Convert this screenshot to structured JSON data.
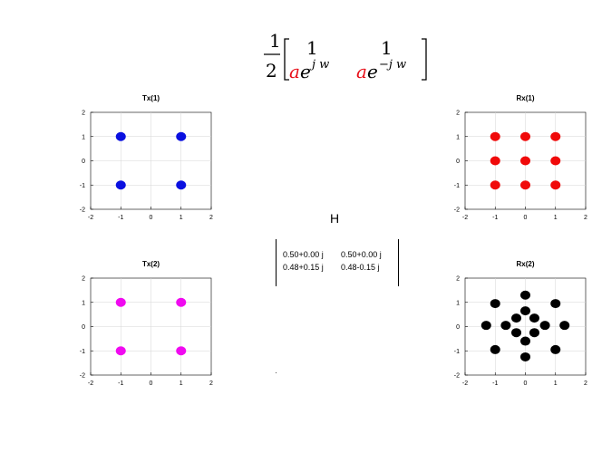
{
  "formula": {
    "frac_num": "1",
    "frac_den": "2",
    "col1_top": "1",
    "col2_top": "1",
    "a": "a",
    "e": "e",
    "exp_pos": "j w",
    "exp_neg": "−j w",
    "accent_color": "#e8101a"
  },
  "h_label": "H",
  "h_matrix": [
    [
      "0.50+0.00 j",
      "0.50+0.00 j"
    ],
    [
      "0.48+0.15 j",
      "0.48-0.15 j"
    ]
  ],
  "chart_data": [
    {
      "type": "scatter",
      "title": "Tx(1)",
      "xlim": [
        -2,
        2
      ],
      "ylim": [
        -2,
        2
      ],
      "xticks": [
        -2,
        -1,
        0,
        1,
        2
      ],
      "yticks": [
        -2,
        -1,
        0,
        1,
        2
      ],
      "color": "#0a10e0",
      "points": [
        [
          -1,
          1
        ],
        [
          1,
          1
        ],
        [
          -1,
          -1
        ],
        [
          1,
          -1
        ]
      ]
    },
    {
      "type": "scatter",
      "title": "Rx(1)",
      "xlim": [
        -2,
        2
      ],
      "ylim": [
        -2,
        2
      ],
      "xticks": [
        -2,
        -1,
        0,
        1,
        2
      ],
      "yticks": [
        -2,
        -1,
        0,
        1,
        2
      ],
      "color": "#f00a0a",
      "points": [
        [
          -1,
          1
        ],
        [
          0,
          1
        ],
        [
          1,
          1
        ],
        [
          -1,
          0
        ],
        [
          0,
          0
        ],
        [
          1,
          0
        ],
        [
          -1,
          -1
        ],
        [
          0,
          -1
        ],
        [
          1,
          -1
        ]
      ]
    },
    {
      "type": "scatter",
      "title": "Tx(2)",
      "xlim": [
        -2,
        2
      ],
      "ylim": [
        -2,
        2
      ],
      "xticks": [
        -2,
        -1,
        0,
        1,
        2
      ],
      "yticks": [
        -2,
        -1,
        0,
        1,
        2
      ],
      "color": "#f00af0",
      "points": [
        [
          -1,
          1
        ],
        [
          1,
          1
        ],
        [
          -1,
          -1
        ],
        [
          1,
          -1
        ]
      ]
    },
    {
      "type": "scatter",
      "title": "Rx(2)",
      "xlim": [
        -2,
        2
      ],
      "ylim": [
        -2,
        2
      ],
      "xticks": [
        -2,
        -1,
        0,
        1,
        2
      ],
      "yticks": [
        -2,
        -1,
        0,
        1,
        2
      ],
      "color": "#000000",
      "points": [
        [
          0,
          1.3
        ],
        [
          -1,
          0.95
        ],
        [
          1,
          0.95
        ],
        [
          0,
          0.65
        ],
        [
          -0.3,
          0.35
        ],
        [
          0.3,
          0.35
        ],
        [
          -0.65,
          0.05
        ],
        [
          0.65,
          0.05
        ],
        [
          -1.3,
          0.05
        ],
        [
          1.3,
          0.05
        ],
        [
          -0.3,
          -0.25
        ],
        [
          0.3,
          -0.25
        ],
        [
          0,
          -0.6
        ],
        [
          -1,
          -0.95
        ],
        [
          1,
          -0.95
        ],
        [
          0,
          -1.25
        ]
      ]
    }
  ]
}
